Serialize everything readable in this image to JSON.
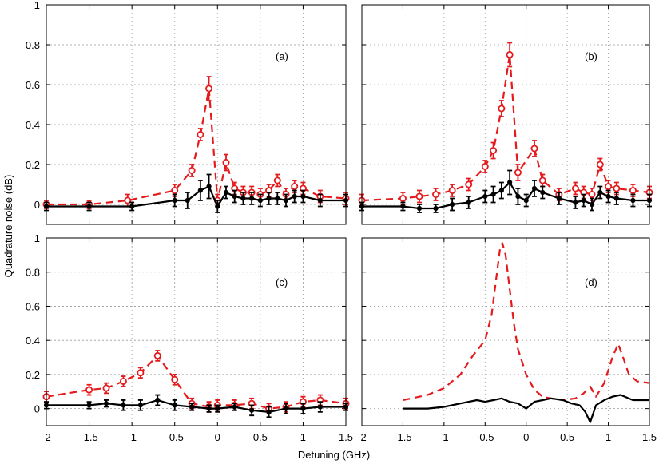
{
  "axes": {
    "xlabel": "Detuning (GHz)",
    "ylabel": "Quadrature noise (dB)",
    "yticks": [
      "0",
      "0.2",
      "0.4",
      "0.6",
      "0.8",
      "1"
    ],
    "ytick_values": [
      0,
      0.2,
      0.4,
      0.6,
      0.8,
      1
    ],
    "xticks": [
      "-2",
      "-1.5",
      "-1",
      "-0.5",
      "0",
      "0.5",
      "1",
      "1.5"
    ],
    "xtick_values": [
      -2,
      -1.5,
      -1,
      -0.5,
      0,
      0.5,
      1,
      1.5
    ]
  },
  "colors": {
    "red": "#e41a1c",
    "black": "#000000",
    "grid": "#9a9a9a"
  },
  "chart_data": [
    {
      "type": "line",
      "panel": "(a)",
      "xlim": [
        -2,
        1.5
      ],
      "ylim": [
        -0.1,
        1
      ],
      "grid": true,
      "series": [
        {
          "style": "red-dashed-circles",
          "x": [
            -2.0,
            -1.5,
            -1.05,
            -0.5,
            -0.3,
            -0.2,
            -0.1,
            0.0,
            0.1,
            0.2,
            0.3,
            0.4,
            0.5,
            0.6,
            0.7,
            0.8,
            0.9,
            1.0,
            1.2,
            1.5
          ],
          "y": [
            0.0,
            0.0,
            0.02,
            0.07,
            0.17,
            0.35,
            0.58,
            0.02,
            0.21,
            0.08,
            0.06,
            0.06,
            0.05,
            0.07,
            0.12,
            0.05,
            0.09,
            0.08,
            0.04,
            0.03
          ],
          "err": [
            0.02,
            0.02,
            0.03,
            0.03,
            0.03,
            0.03,
            0.06,
            0.03,
            0.04,
            0.03,
            0.03,
            0.03,
            0.03,
            0.03,
            0.03,
            0.03,
            0.03,
            0.03,
            0.03,
            0.03
          ]
        },
        {
          "style": "black-solid-dots",
          "x": [
            -2.0,
            -1.5,
            -1.0,
            -0.5,
            -0.35,
            -0.2,
            -0.1,
            0.0,
            0.1,
            0.2,
            0.3,
            0.4,
            0.5,
            0.6,
            0.7,
            0.8,
            0.9,
            1.0,
            1.2,
            1.5
          ],
          "y": [
            -0.01,
            -0.01,
            -0.01,
            0.02,
            0.02,
            0.07,
            0.09,
            -0.01,
            0.06,
            0.04,
            0.03,
            0.03,
            0.02,
            0.03,
            0.03,
            0.02,
            0.04,
            0.04,
            0.02,
            0.02
          ],
          "err": [
            0.02,
            0.02,
            0.02,
            0.03,
            0.04,
            0.05,
            0.06,
            0.03,
            0.03,
            0.03,
            0.03,
            0.03,
            0.03,
            0.03,
            0.03,
            0.03,
            0.03,
            0.03,
            0.03,
            0.03
          ]
        }
      ]
    },
    {
      "type": "line",
      "panel": "(b)",
      "xlim": [
        -2,
        1.5
      ],
      "ylim": [
        -0.1,
        1
      ],
      "grid": true,
      "series": [
        {
          "style": "red-dashed-circles",
          "x": [
            -2.0,
            -1.5,
            -1.3,
            -1.1,
            -0.9,
            -0.7,
            -0.5,
            -0.4,
            -0.3,
            -0.2,
            -0.1,
            0.1,
            0.2,
            0.4,
            0.6,
            0.7,
            0.8,
            0.9,
            1.0,
            1.1,
            1.3,
            1.5
          ],
          "y": [
            0.02,
            0.03,
            0.04,
            0.05,
            0.07,
            0.1,
            0.19,
            0.27,
            0.48,
            0.75,
            0.16,
            0.28,
            0.12,
            0.05,
            0.08,
            0.06,
            0.05,
            0.2,
            0.09,
            0.08,
            0.07,
            0.06
          ],
          "err": [
            0.03,
            0.03,
            0.03,
            0.03,
            0.03,
            0.03,
            0.03,
            0.04,
            0.04,
            0.06,
            0.04,
            0.04,
            0.03,
            0.03,
            0.03,
            0.03,
            0.03,
            0.03,
            0.03,
            0.03,
            0.03,
            0.03
          ]
        },
        {
          "style": "black-solid-dots",
          "x": [
            -2.0,
            -1.5,
            -1.3,
            -1.1,
            -0.9,
            -0.7,
            -0.5,
            -0.4,
            -0.3,
            -0.2,
            -0.1,
            0.0,
            0.1,
            0.2,
            0.4,
            0.6,
            0.7,
            0.8,
            0.9,
            1.0,
            1.1,
            1.3,
            1.5
          ],
          "y": [
            -0.01,
            -0.01,
            -0.02,
            -0.02,
            0.0,
            0.01,
            0.04,
            0.05,
            0.07,
            0.11,
            0.04,
            0.02,
            0.08,
            0.06,
            0.03,
            0.01,
            0.02,
            0.0,
            0.06,
            0.04,
            0.03,
            0.02,
            0.02
          ],
          "err": [
            0.02,
            0.02,
            0.02,
            0.02,
            0.03,
            0.03,
            0.03,
            0.04,
            0.04,
            0.06,
            0.04,
            0.03,
            0.04,
            0.03,
            0.03,
            0.03,
            0.03,
            0.03,
            0.03,
            0.03,
            0.03,
            0.03,
            0.03
          ]
        }
      ]
    },
    {
      "type": "line",
      "panel": "(c)",
      "xlim": [
        -2,
        1.5
      ],
      "ylim": [
        -0.1,
        1
      ],
      "grid": true,
      "series": [
        {
          "style": "red-dashed-circles",
          "x": [
            -2.0,
            -1.5,
            -1.3,
            -1.1,
            -0.9,
            -0.7,
            -0.5,
            -0.3,
            -0.1,
            0.0,
            0.2,
            0.4,
            0.6,
            0.8,
            1.0,
            1.2,
            1.5
          ],
          "y": [
            0.07,
            0.11,
            0.12,
            0.16,
            0.21,
            0.31,
            0.17,
            0.03,
            0.01,
            0.02,
            0.02,
            0.03,
            0.0,
            0.01,
            0.04,
            0.05,
            0.03
          ],
          "err": [
            0.03,
            0.03,
            0.03,
            0.03,
            0.03,
            0.03,
            0.03,
            0.03,
            0.03,
            0.03,
            0.03,
            0.03,
            0.03,
            0.03,
            0.03,
            0.03,
            0.03
          ]
        },
        {
          "style": "black-solid-dots",
          "x": [
            -2.0,
            -1.5,
            -1.3,
            -1.1,
            -0.9,
            -0.7,
            -0.5,
            -0.3,
            -0.1,
            0.0,
            0.2,
            0.4,
            0.6,
            0.8,
            1.0,
            1.2,
            1.5
          ],
          "y": [
            0.02,
            0.02,
            0.03,
            0.02,
            0.02,
            0.05,
            0.02,
            0.01,
            0.0,
            0.0,
            0.01,
            -0.01,
            -0.02,
            0.0,
            0.0,
            0.01,
            0.01
          ],
          "err": [
            0.02,
            0.02,
            0.02,
            0.03,
            0.03,
            0.03,
            0.03,
            0.02,
            0.02,
            0.02,
            0.02,
            0.03,
            0.03,
            0.03,
            0.03,
            0.03,
            0.02
          ]
        }
      ]
    },
    {
      "type": "line",
      "panel": "(d)",
      "xlim": [
        -2,
        1.5
      ],
      "ylim": [
        -0.1,
        1
      ],
      "grid": true,
      "series": [
        {
          "style": "red-dashed",
          "x": [
            -1.5,
            -1.2,
            -1.0,
            -0.8,
            -0.65,
            -0.5,
            -0.42,
            -0.36,
            -0.32,
            -0.29,
            -0.25,
            -0.2,
            -0.15,
            -0.1,
            0.0,
            0.1,
            0.2,
            0.3,
            0.45,
            0.6,
            0.7,
            0.78,
            0.85,
            0.95,
            1.05,
            1.12,
            1.18,
            1.25,
            1.35,
            1.5
          ],
          "y": [
            0.05,
            0.08,
            0.12,
            0.2,
            0.31,
            0.4,
            0.55,
            0.78,
            0.93,
            0.97,
            0.9,
            0.7,
            0.5,
            0.35,
            0.2,
            0.11,
            0.07,
            0.06,
            0.05,
            0.06,
            0.09,
            0.13,
            0.07,
            0.15,
            0.3,
            0.38,
            0.3,
            0.2,
            0.16,
            0.15
          ]
        },
        {
          "style": "black-solid",
          "x": [
            -1.5,
            -1.2,
            -1.0,
            -0.8,
            -0.6,
            -0.5,
            -0.4,
            -0.3,
            -0.2,
            -0.1,
            0.0,
            0.1,
            0.2,
            0.3,
            0.45,
            0.55,
            0.65,
            0.72,
            0.78,
            0.85,
            0.95,
            1.05,
            1.15,
            1.3,
            1.5
          ],
          "y": [
            0.0,
            0.0,
            0.01,
            0.03,
            0.05,
            0.04,
            0.05,
            0.06,
            0.04,
            0.03,
            0.0,
            0.04,
            0.05,
            0.06,
            0.05,
            0.03,
            0.02,
            -0.02,
            -0.08,
            0.02,
            0.05,
            0.07,
            0.08,
            0.05,
            0.05
          ]
        }
      ]
    }
  ],
  "panels": [
    {
      "label": "(a)"
    },
    {
      "label": "(b)"
    },
    {
      "label": "(c)"
    },
    {
      "label": "(d)"
    }
  ]
}
